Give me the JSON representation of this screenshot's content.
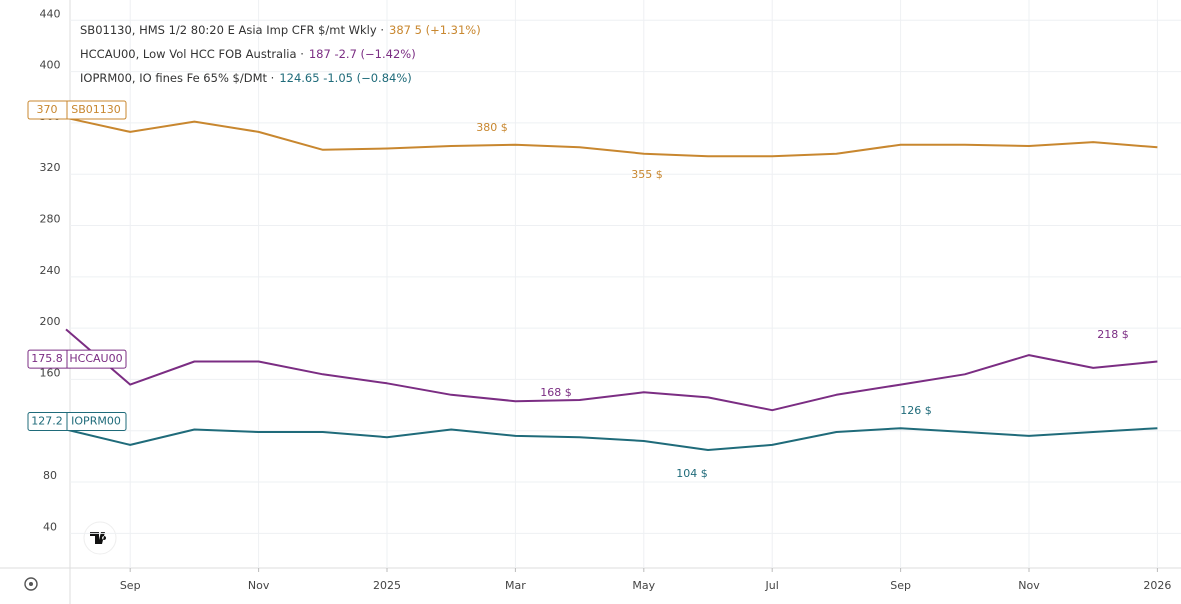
{
  "chart_data": {
    "type": "line",
    "x": [
      "2024-08",
      "2024-09",
      "2024-10",
      "2024-11",
      "2024-12",
      "2025-01",
      "2025-02",
      "2025-03",
      "2025-04",
      "2025-05",
      "2025-06",
      "2025-07",
      "2025-08",
      "2025-09",
      "2025-10",
      "2025-11",
      "2025-12",
      "2026-01"
    ],
    "xticks": [
      {
        "value": "2024-09",
        "label": "Sep"
      },
      {
        "value": "2024-11",
        "label": "Nov"
      },
      {
        "value": "2025-01",
        "label": "2025"
      },
      {
        "value": "2025-03",
        "label": "Mar"
      },
      {
        "value": "2025-05",
        "label": "May"
      },
      {
        "value": "2025-07",
        "label": "Jul"
      },
      {
        "value": "2025-09",
        "label": "Sep"
      },
      {
        "value": "2025-11",
        "label": "Nov"
      },
      {
        "value": "2026-01",
        "label": "2026"
      }
    ],
    "ylim": [
      13,
      448
    ],
    "yticks": [
      40,
      80,
      120,
      160,
      200,
      240,
      280,
      320,
      360,
      400,
      440
    ],
    "grid": true,
    "series": [
      {
        "name": "SB01130, HMS 1/2 80:20 E Asia Imp CFR $/mt Wkly ·",
        "legend_value": "387 5 (+1.31%)",
        "price_label": 370,
        "tag": "SB01130",
        "color": "#c8872f",
        "values": [
          364,
          353,
          361,
          353,
          339,
          340,
          342,
          343,
          341,
          336,
          334,
          334,
          336,
          343,
          343,
          342,
          345,
          341
        ]
      },
      {
        "name": "HCCAU00, Low Vol HCC FOB Australia ·",
        "legend_value": "187 -2.7 (−1.42%)",
        "price_label": 175.8,
        "tag": "HCCAU00",
        "color": "#7b2d83",
        "values": [
          199,
          156,
          174,
          174,
          164,
          157,
          148,
          143,
          144,
          150,
          146,
          136,
          148,
          156,
          164,
          179,
          169,
          174
        ]
      },
      {
        "name": "IOPRM00, IO fines Fe 65% $/DMt ·",
        "legend_value": "124.65 -1.05 (−0.84%)",
        "price_label": 127.2,
        "tag": "IOPRM00",
        "color": "#1f6b7a",
        "values": [
          121,
          109,
          121,
          119,
          119,
          115,
          121,
          116,
          115,
          112,
          105,
          109,
          119,
          122,
          119,
          116,
          119,
          122
        ]
      }
    ],
    "annotations": [
      {
        "text": "380 $",
        "series": 0
      },
      {
        "text": "355 $",
        "series": 0
      },
      {
        "text": "168 $",
        "series": 1
      },
      {
        "text": "218 $",
        "series": 1
      },
      {
        "text": "126 $",
        "series": 2
      },
      {
        "text": "104 $",
        "series": 2
      }
    ]
  }
}
